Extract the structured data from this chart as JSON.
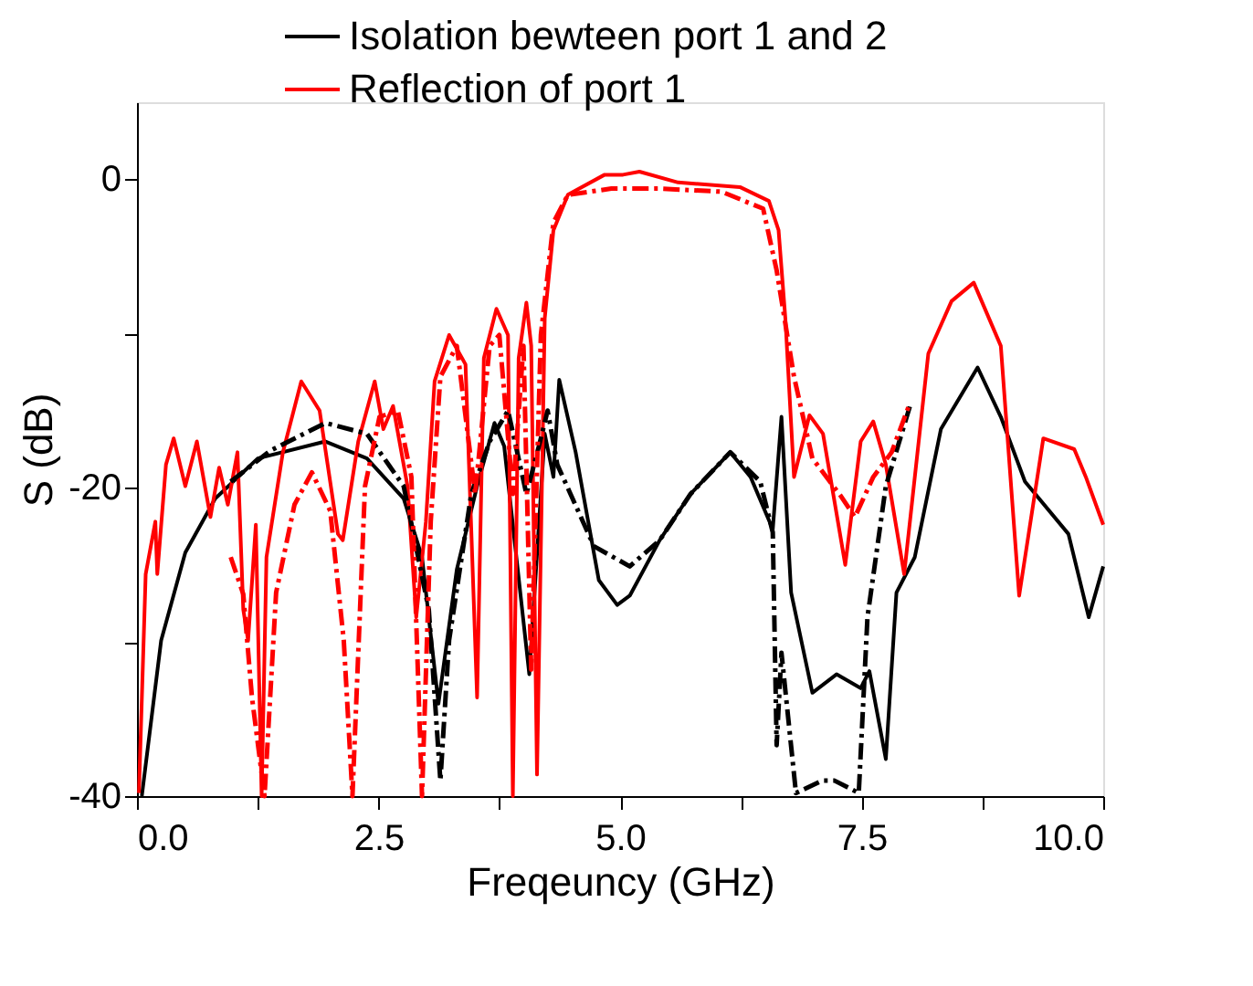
{
  "chart_data": {
    "type": "line",
    "xlabel": "Freqeuncy (GHz)",
    "ylabel": "S (dB)",
    "xlim": [
      0,
      10
    ],
    "ylim": [
      -40,
      5
    ],
    "xticks": [
      {
        "value": 0,
        "label": "0.0"
      },
      {
        "value": 1.25,
        "label": null
      },
      {
        "value": 2.5,
        "label": "2.5"
      },
      {
        "value": 3.75,
        "label": null
      },
      {
        "value": 5,
        "label": "5.0"
      },
      {
        "value": 6.25,
        "label": null
      },
      {
        "value": 7.5,
        "label": "7.5"
      },
      {
        "value": 8.75,
        "label": null
      },
      {
        "value": 10,
        "label": "10.0"
      }
    ],
    "yticks": [
      0,
      {
        "value": -10,
        "label": null
      },
      -20,
      {
        "value": -30,
        "label": null
      },
      -40
    ],
    "grid": false,
    "legend": "top",
    "marker": "none",
    "series": [
      {
        "name": "Isolation bewteen port 1 and 2",
        "color": "#000000",
        "line_style": "solid",
        "x": [
          0.05,
          0.25,
          0.5,
          0.81,
          1.25,
          1.95,
          2.38,
          2.76,
          2.95,
          3.12,
          3.31,
          3.52,
          3.7,
          3.8,
          4.06,
          4.22,
          4.31,
          4.37,
          4.54,
          4.78,
          4.97,
          5.1,
          5.41,
          5.73,
          6.14,
          6.35,
          6.58,
          6.67,
          6.77,
          6.99,
          7.24,
          7.49,
          7.58,
          7.75,
          7.86,
          8.05,
          8.32,
          8.7,
          8.94,
          9.19,
          9.64,
          9.85,
          10
        ],
        "values": [
          -40,
          -29.9,
          -24.2,
          -20.7,
          -18.1,
          -17,
          -18.1,
          -20.7,
          -24.5,
          -34,
          -25.3,
          -19.9,
          -15.8,
          -17.3,
          -32.1,
          -16.5,
          -19.3,
          -13,
          -17.7,
          -26,
          -27.6,
          -27,
          -23.4,
          -20.4,
          -17.7,
          -19.3,
          -22.7,
          -15.4,
          -26.8,
          -33.3,
          -32.1,
          -33,
          -31.9,
          -37.6,
          -26.8,
          -24.5,
          -16.2,
          -12.2,
          -15.4,
          -19.6,
          -23,
          -28.4,
          -25.1
        ]
      },
      {
        "name": "Reflection of port 1",
        "color": "#ff0000",
        "line_style": "solid",
        "x": [
          0.02,
          0.09,
          0.19,
          0.21,
          0.3,
          0.38,
          0.5,
          0.62,
          0.76,
          0.85,
          0.94,
          1.04,
          1.1,
          1.15,
          1.23,
          1.29,
          1.34,
          1.51,
          1.7,
          1.89,
          2.08,
          2.13,
          2.29,
          2.46,
          2.55,
          2.65,
          2.8,
          2.89,
          2.99,
          3.08,
          3.23,
          3.4,
          3.52,
          3.59,
          3.72,
          3.84,
          3.89,
          3.95,
          4.03,
          4.08,
          4.14,
          4.22,
          4.31,
          4.46,
          4.84,
          5.03,
          5.2,
          5.6,
          6.24,
          6.54,
          6.64,
          6.71,
          6.8,
          6.96,
          7.1,
          7.33,
          7.49,
          7.62,
          7.75,
          7.94,
          8.19,
          8.43,
          8.66,
          8.94,
          9.13,
          9.38,
          9.7,
          9.82,
          10
        ],
        "values": [
          -39.8,
          -25.6,
          -22.2,
          -25.6,
          -18.5,
          -16.8,
          -19.9,
          -17,
          -21.9,
          -18.7,
          -21.1,
          -17.7,
          -27.9,
          -29.9,
          -22.4,
          -40,
          -24.5,
          -17.7,
          -13.1,
          -15,
          -23,
          -23.4,
          -17,
          -13.1,
          -16.2,
          -14.7,
          -19.9,
          -28.4,
          -22.2,
          -13.1,
          -10.1,
          -12,
          -33.6,
          -11.6,
          -8.4,
          -10.1,
          -40,
          -11.6,
          -8,
          -10.8,
          -38.6,
          -9,
          -3.3,
          -1,
          0.3,
          0.3,
          0.5,
          -0.2,
          -0.5,
          -1.4,
          -3.3,
          -9,
          -19.3,
          -15.3,
          -16.5,
          -25,
          -17,
          -15.7,
          -18.5,
          -25.6,
          -11.3,
          -7.9,
          -6.7,
          -10.8,
          -27,
          -16.8,
          -17.5,
          -19.3,
          -22.4
        ]
      },
      {
        "color": "#000000",
        "line_style": "dashed",
        "x": [
          0.97,
          1.38,
          1.95,
          2.38,
          2.76,
          3.02,
          3.14,
          3.23,
          3.46,
          3.65,
          3.84,
          4.03,
          4.16,
          4.25,
          4.35,
          4.73,
          5.1,
          5.41,
          5.73,
          6.14,
          6.45,
          6.58,
          6.62,
          6.67,
          6.82,
          7.09,
          7.22,
          7.47,
          7.56,
          7.75,
          8.0
        ],
        "values": [
          -19.6,
          -17.6,
          -15.8,
          -16.5,
          -19.9,
          -27.9,
          -39,
          -29.9,
          -20.4,
          -17,
          -15,
          -20.4,
          -17.3,
          -15,
          -18.5,
          -23.8,
          -25.1,
          -23.4,
          -20.4,
          -17.7,
          -19.6,
          -22.9,
          -36.7,
          -30.7,
          -39.8,
          -39,
          -39,
          -39.8,
          -28.4,
          -19.9,
          -14.7
        ]
      },
      {
        "color": "#ff0000",
        "line_style": "dashed",
        "x": [
          0.97,
          1.1,
          1.19,
          1.32,
          1.44,
          1.63,
          1.81,
          2.0,
          2.14,
          2.23,
          2.36,
          2.51,
          2.7,
          2.84,
          2.95,
          3.04,
          3.14,
          3.31,
          3.5,
          3.65,
          3.75,
          3.89,
          4.0,
          4.08,
          4.18,
          4.31,
          4.46,
          4.91,
          5.41,
          6.05,
          6.48,
          6.62,
          6.8,
          6.99,
          7.28,
          7.43,
          7.62,
          7.81,
          8.0
        ],
        "values": [
          -24.5,
          -26.9,
          -33.6,
          -40,
          -26.8,
          -21.1,
          -19,
          -21.5,
          -29.9,
          -40,
          -19.9,
          -15.4,
          -15,
          -19.3,
          -40,
          -22.2,
          -12.8,
          -10.8,
          -20.4,
          -10.8,
          -10.1,
          -20.4,
          -10.8,
          -31.8,
          -10.1,
          -2.8,
          -1,
          -0.6,
          -0.6,
          -0.8,
          -1.9,
          -5.9,
          -12.8,
          -18.1,
          -20.5,
          -21.9,
          -19.3,
          -17.7,
          -14.5
        ]
      }
    ]
  }
}
